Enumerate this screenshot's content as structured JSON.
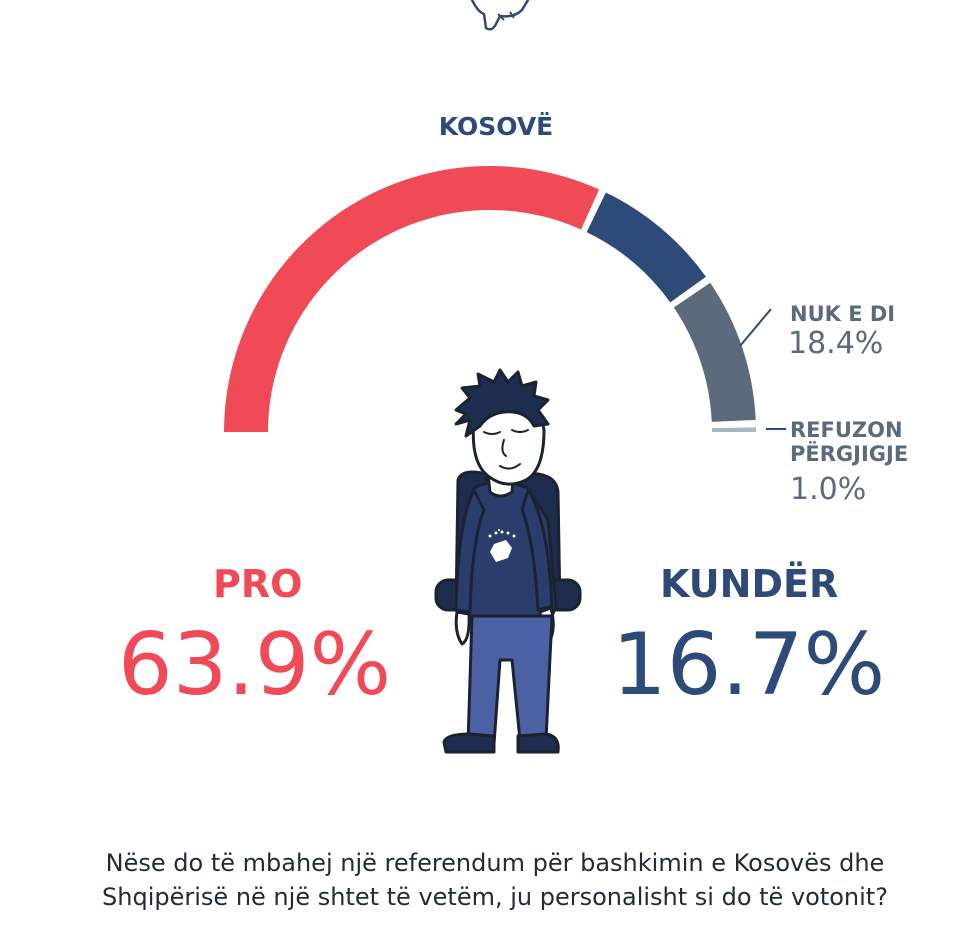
{
  "title": "KOSOVË",
  "chart_data": {
    "type": "gauge",
    "title": "KOSOVË",
    "segments": [
      {
        "name": "PRO",
        "value": 63.9,
        "label": "63.9%",
        "color": "#ef4a55"
      },
      {
        "name": "KUNDËR",
        "value": 16.7,
        "label": "16.7%",
        "color": "#2d4a78"
      },
      {
        "name": "NUK E DI",
        "value": 18.4,
        "label": "18.4%",
        "color": "#5b6b7c"
      },
      {
        "name": "REFUZON PËRGJIGJE",
        "value": 1.0,
        "label": "1.0%",
        "color": "#a9b6c4"
      }
    ]
  },
  "labels": {
    "pro_name": "PRO",
    "pro_value": "63.9%",
    "kunder_name": "KUNDËR",
    "kunder_value": "16.7%",
    "nukedi_name": "NUK E DI",
    "nukedi_value": "18.4%",
    "refuzon_line1": "REFUZON",
    "refuzon_line2": "PËRGJIGJE",
    "refuzon_value": "1.0%"
  },
  "question": {
    "line1": "Nëse do të mbahej një referendum për bashkimin e Kosovës dhe",
    "line2": "Shqipërisë në një shtet të vetëm, ju personalisht si do të votonit?"
  }
}
